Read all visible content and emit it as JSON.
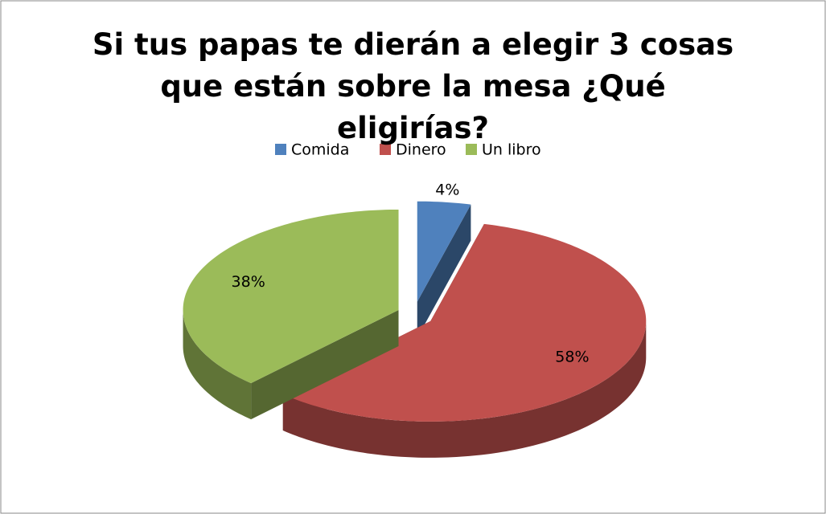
{
  "chart_data": {
    "type": "pie",
    "title": "Si tus papas te dierán a elegir 3 cosas que están sobre la mesa ¿Qué eligirías?",
    "categories": [
      "Comida",
      "Dinero",
      "Un libro"
    ],
    "values": [
      4,
      58,
      38
    ],
    "value_labels": [
      "4%",
      "58%",
      "38%"
    ],
    "colors": [
      "#4f81bd",
      "#c0504d",
      "#9bbb59"
    ],
    "legend": "top"
  }
}
